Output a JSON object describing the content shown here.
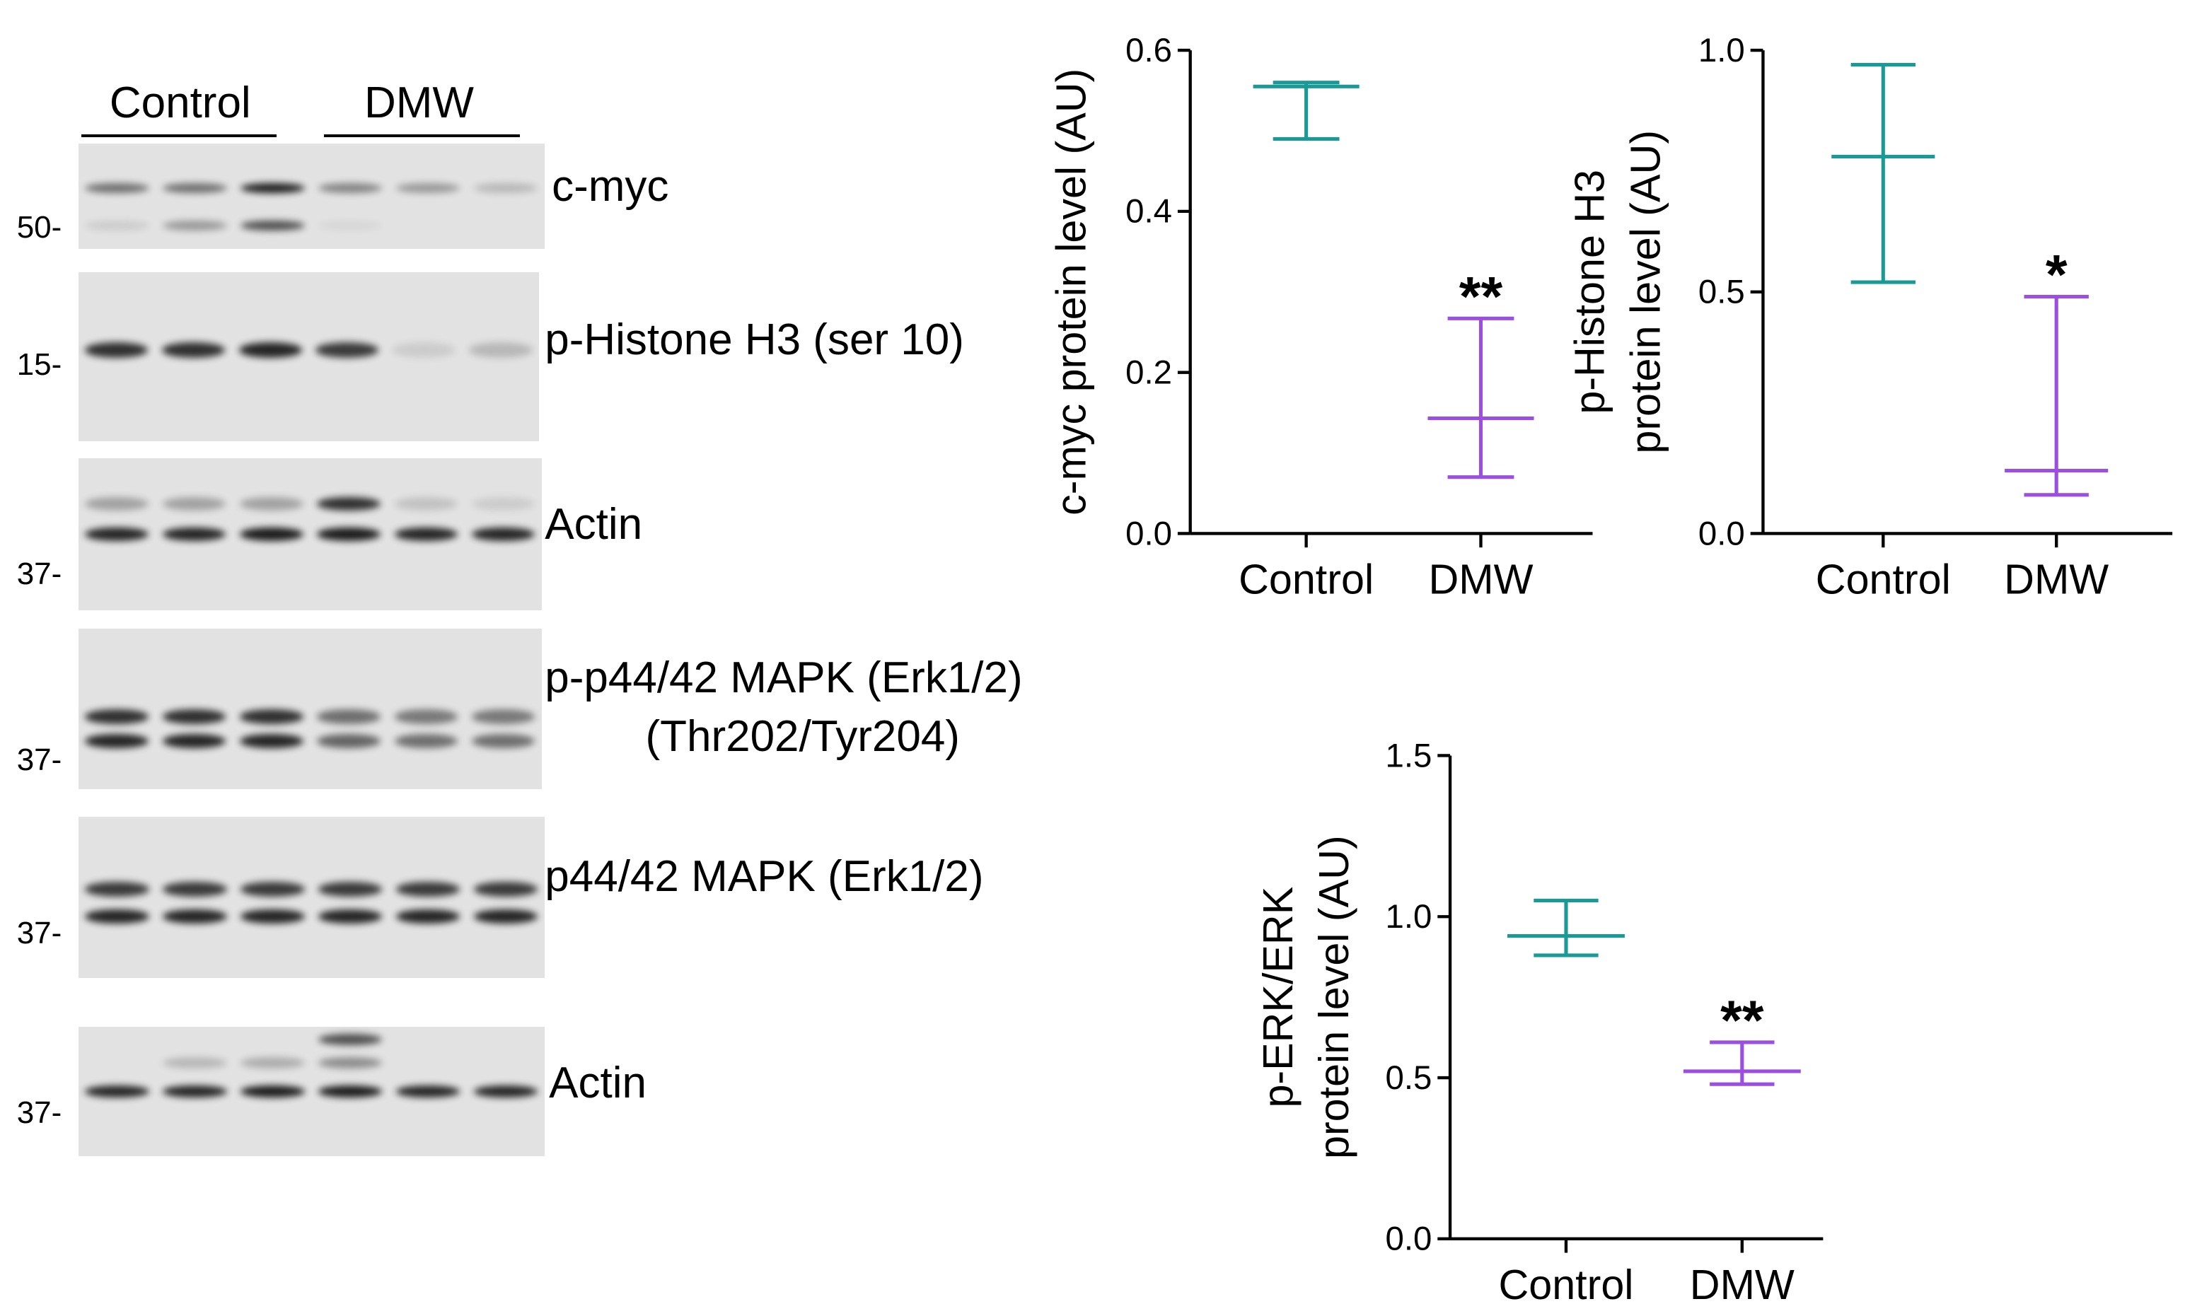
{
  "western_blot": {
    "groups": [
      {
        "name": "Control",
        "lanes": 3
      },
      {
        "name": "DMW",
        "lanes": 3
      }
    ],
    "panels": [
      {
        "label": "c-myc",
        "mw": "50-",
        "bands": [
          {
            "row": 0.42,
            "intensity": [
              0.55,
              0.55,
              0.95,
              0.45,
              0.35,
              0.2
            ]
          },
          {
            "row": 0.78,
            "intensity": [
              0.1,
              0.35,
              0.7,
              0.05,
              0.0,
              0.0
            ]
          }
        ]
      },
      {
        "label": "p-Histone H3 (ser 10)",
        "mw": "15-",
        "bands": [
          {
            "row": 0.46,
            "intensity": [
              0.85,
              0.85,
              0.9,
              0.8,
              0.1,
              0.2
            ]
          }
        ]
      },
      {
        "label": "Actin",
        "mw": "37-",
        "bands": [
          {
            "row": 0.3,
            "intensity": [
              0.3,
              0.3,
              0.3,
              0.85,
              0.15,
              0.1
            ]
          },
          {
            "row": 0.5,
            "intensity": [
              0.9,
              0.9,
              0.95,
              0.95,
              0.9,
              0.9
            ]
          }
        ]
      },
      {
        "label": "p-p44/42 MAPK (Erk1/2)",
        "label2": "(Thr202/Tyr204)",
        "mw": "37-",
        "bands": [
          {
            "row": 0.55,
            "intensity": [
              0.85,
              0.85,
              0.85,
              0.55,
              0.5,
              0.5
            ]
          },
          {
            "row": 0.7,
            "intensity": [
              0.9,
              0.9,
              0.9,
              0.6,
              0.55,
              0.55
            ]
          }
        ]
      },
      {
        "label": "p44/42 MAPK (Erk1/2)",
        "mw": "37-",
        "bands": [
          {
            "row": 0.45,
            "intensity": [
              0.8,
              0.8,
              0.8,
              0.8,
              0.8,
              0.8
            ]
          },
          {
            "row": 0.62,
            "intensity": [
              0.9,
              0.9,
              0.9,
              0.9,
              0.9,
              0.9
            ]
          }
        ]
      },
      {
        "label": "Actin",
        "mw": "37-",
        "bands": [
          {
            "row": 0.1,
            "intensity": [
              0.0,
              0.0,
              0.0,
              0.7,
              0.0,
              0.0
            ]
          },
          {
            "row": 0.28,
            "intensity": [
              0.0,
              0.2,
              0.25,
              0.4,
              0.0,
              0.0
            ]
          },
          {
            "row": 0.5,
            "intensity": [
              0.9,
              0.9,
              0.95,
              0.95,
              0.9,
              0.9
            ]
          }
        ]
      }
    ]
  },
  "colors": {
    "control": "#1a9a96",
    "dmw": "#9b4fe0",
    "axis": "#000000",
    "band": "#111111"
  },
  "chart_data": [
    {
      "type": "scatter",
      "title": "",
      "ylabel": [
        "c-myc protein level (AU)"
      ],
      "xlabel": "",
      "categories": [
        "Control",
        "DMW"
      ],
      "ylim": [
        0,
        0.6
      ],
      "yticks": [
        "0.0",
        "0.2",
        "0.4",
        "0.6"
      ],
      "series": [
        {
          "name": "Control",
          "mean": 0.555,
          "low": 0.49,
          "high": 0.56,
          "significance": ""
        },
        {
          "name": "DMW",
          "mean": 0.143,
          "low": 0.07,
          "high": 0.267,
          "significance": "**"
        }
      ]
    },
    {
      "type": "scatter",
      "title": "",
      "ylabel": [
        "p-Histone H3",
        "protein level (AU)"
      ],
      "xlabel": "",
      "categories": [
        "Control",
        "DMW"
      ],
      "ylim": [
        0,
        1.0
      ],
      "yticks": [
        "0.0",
        "0.5",
        "1.0"
      ],
      "series": [
        {
          "name": "Control",
          "mean": 0.78,
          "low": 0.52,
          "high": 0.97,
          "significance": ""
        },
        {
          "name": "DMW",
          "mean": 0.13,
          "low": 0.08,
          "high": 0.49,
          "significance": "*"
        }
      ]
    },
    {
      "type": "scatter",
      "title": "",
      "ylabel": [
        "p-ERK/ERK",
        "protein level (AU)"
      ],
      "xlabel": "",
      "categories": [
        "Control",
        "DMW"
      ],
      "ylim": [
        0,
        1.5
      ],
      "yticks": [
        "0.0",
        "0.5",
        "1.0",
        "1.5"
      ],
      "series": [
        {
          "name": "Control",
          "mean": 0.94,
          "low": 0.88,
          "high": 1.05,
          "significance": ""
        },
        {
          "name": "DMW",
          "mean": 0.52,
          "low": 0.48,
          "high": 0.61,
          "significance": "**"
        }
      ]
    }
  ]
}
